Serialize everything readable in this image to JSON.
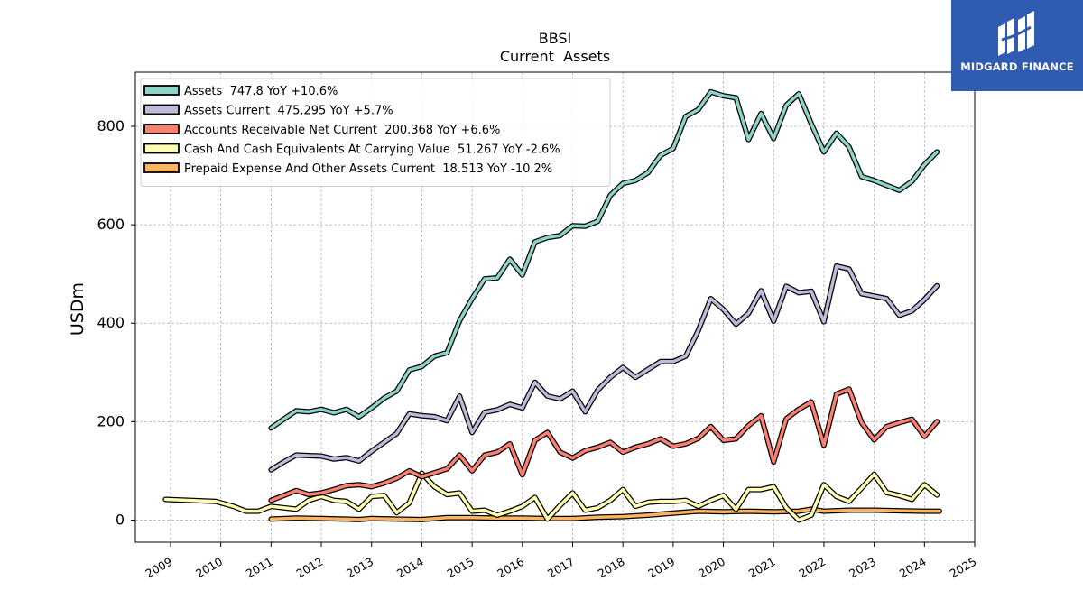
{
  "colors": {
    "assets": "#8dd3c7",
    "assets_current": "#bebada",
    "receivable": "#fb8072",
    "cash": "#ffffb3",
    "prepaid": "#fdb462",
    "outline": "#000000",
    "grid": "#b0b0b0",
    "logo_bg": "#2f5bb0"
  },
  "brand": {
    "name": "MIDGARD FINANCE",
    "icon": "midgard-logo-icon"
  },
  "chart_data": {
    "type": "line",
    "title": "BBSI",
    "subtitle": "Current  Assets",
    "ylabel": "USDm",
    "xlabel": "",
    "xlim": [
      2008.3,
      2025.0
    ],
    "ylim": [
      -45,
      910
    ],
    "yticks": [
      0,
      200,
      400,
      600,
      800
    ],
    "xticks": [
      2009,
      2010,
      2011,
      2012,
      2013,
      2014,
      2015,
      2016,
      2017,
      2018,
      2019,
      2020,
      2021,
      2022,
      2023,
      2024,
      2025
    ],
    "grid": true,
    "legend_position": "top-left",
    "series": [
      {
        "name": "Assets  747.8 YoY +10.6%",
        "color_key": "assets",
        "points": [
          [
            2011.0,
            187
          ],
          [
            2011.25,
            205
          ],
          [
            2011.5,
            222
          ],
          [
            2011.75,
            220
          ],
          [
            2012.0,
            225
          ],
          [
            2012.25,
            218
          ],
          [
            2012.5,
            225
          ],
          [
            2012.75,
            210
          ],
          [
            2013.0,
            228
          ],
          [
            2013.25,
            248
          ],
          [
            2013.5,
            262
          ],
          [
            2013.75,
            305
          ],
          [
            2014.0,
            312
          ],
          [
            2014.25,
            333
          ],
          [
            2014.5,
            340
          ],
          [
            2014.75,
            405
          ],
          [
            2015.0,
            450
          ],
          [
            2015.25,
            490
          ],
          [
            2015.5,
            492
          ],
          [
            2015.75,
            530
          ],
          [
            2016.0,
            498
          ],
          [
            2016.25,
            565
          ],
          [
            2016.5,
            574
          ],
          [
            2016.75,
            578
          ],
          [
            2017.0,
            598
          ],
          [
            2017.25,
            597
          ],
          [
            2017.5,
            607
          ],
          [
            2017.75,
            660
          ],
          [
            2018.0,
            684
          ],
          [
            2018.25,
            690
          ],
          [
            2018.5,
            706
          ],
          [
            2018.75,
            741
          ],
          [
            2019.0,
            755
          ],
          [
            2019.25,
            820
          ],
          [
            2019.5,
            834
          ],
          [
            2019.75,
            870
          ],
          [
            2020.0,
            862
          ],
          [
            2020.25,
            858
          ],
          [
            2020.5,
            773
          ],
          [
            2020.75,
            826
          ],
          [
            2021.0,
            775
          ],
          [
            2021.25,
            843
          ],
          [
            2021.5,
            866
          ],
          [
            2021.75,
            805
          ],
          [
            2022.0,
            748
          ],
          [
            2022.25,
            786
          ],
          [
            2022.5,
            758
          ],
          [
            2022.75,
            698
          ],
          [
            2023.0,
            690
          ],
          [
            2023.25,
            680
          ],
          [
            2023.5,
            670
          ],
          [
            2023.75,
            688
          ],
          [
            2024.0,
            722
          ],
          [
            2024.25,
            748
          ]
        ]
      },
      {
        "name": "Assets Current  475.295 YoY +5.7%",
        "color_key": "assets_current",
        "points": [
          [
            2011.0,
            102
          ],
          [
            2011.25,
            118
          ],
          [
            2011.5,
            132
          ],
          [
            2011.75,
            131
          ],
          [
            2012.0,
            130
          ],
          [
            2012.25,
            124
          ],
          [
            2012.5,
            127
          ],
          [
            2012.75,
            120
          ],
          [
            2013.0,
            140
          ],
          [
            2013.25,
            158
          ],
          [
            2013.5,
            176
          ],
          [
            2013.75,
            216
          ],
          [
            2014.0,
            212
          ],
          [
            2014.25,
            210
          ],
          [
            2014.5,
            202
          ],
          [
            2014.75,
            252
          ],
          [
            2015.0,
            178
          ],
          [
            2015.25,
            219
          ],
          [
            2015.5,
            224
          ],
          [
            2015.75,
            235
          ],
          [
            2016.0,
            228
          ],
          [
            2016.25,
            280
          ],
          [
            2016.5,
            252
          ],
          [
            2016.75,
            246
          ],
          [
            2017.0,
            262
          ],
          [
            2017.25,
            220
          ],
          [
            2017.5,
            264
          ],
          [
            2017.75,
            290
          ],
          [
            2018.0,
            310
          ],
          [
            2018.25,
            290
          ],
          [
            2018.5,
            306
          ],
          [
            2018.75,
            322
          ],
          [
            2019.0,
            322
          ],
          [
            2019.25,
            333
          ],
          [
            2019.5,
            385
          ],
          [
            2019.75,
            450
          ],
          [
            2020.0,
            428
          ],
          [
            2020.25,
            398
          ],
          [
            2020.5,
            420
          ],
          [
            2020.75,
            466
          ],
          [
            2021.0,
            404
          ],
          [
            2021.25,
            475
          ],
          [
            2021.5,
            462
          ],
          [
            2021.75,
            465
          ],
          [
            2022.0,
            403
          ],
          [
            2022.25,
            516
          ],
          [
            2022.5,
            510
          ],
          [
            2022.75,
            460
          ],
          [
            2023.0,
            455
          ],
          [
            2023.25,
            450
          ],
          [
            2023.5,
            416
          ],
          [
            2023.75,
            425
          ],
          [
            2024.0,
            448
          ],
          [
            2024.25,
            476
          ]
        ]
      },
      {
        "name": "Accounts Receivable Net Current  200.368 YoY +6.6%",
        "color_key": "receivable",
        "points": [
          [
            2011.0,
            40
          ],
          [
            2011.25,
            50
          ],
          [
            2011.5,
            60
          ],
          [
            2011.75,
            52
          ],
          [
            2012.0,
            55
          ],
          [
            2012.25,
            62
          ],
          [
            2012.5,
            70
          ],
          [
            2012.75,
            72
          ],
          [
            2013.0,
            68
          ],
          [
            2013.25,
            75
          ],
          [
            2013.5,
            85
          ],
          [
            2013.75,
            100
          ],
          [
            2014.0,
            88
          ],
          [
            2014.25,
            96
          ],
          [
            2014.5,
            104
          ],
          [
            2014.75,
            132
          ],
          [
            2015.0,
            100
          ],
          [
            2015.25,
            132
          ],
          [
            2015.5,
            138
          ],
          [
            2015.75,
            155
          ],
          [
            2016.0,
            92
          ],
          [
            2016.25,
            162
          ],
          [
            2016.5,
            178
          ],
          [
            2016.75,
            138
          ],
          [
            2017.0,
            126
          ],
          [
            2017.25,
            141
          ],
          [
            2017.5,
            148
          ],
          [
            2017.75,
            158
          ],
          [
            2018.0,
            138
          ],
          [
            2018.25,
            148
          ],
          [
            2018.5,
            155
          ],
          [
            2018.75,
            165
          ],
          [
            2019.0,
            150
          ],
          [
            2019.25,
            155
          ],
          [
            2019.5,
            166
          ],
          [
            2019.75,
            190
          ],
          [
            2020.0,
            162
          ],
          [
            2020.25,
            165
          ],
          [
            2020.5,
            192
          ],
          [
            2020.75,
            212
          ],
          [
            2021.0,
            118
          ],
          [
            2021.25,
            206
          ],
          [
            2021.5,
            225
          ],
          [
            2021.75,
            240
          ],
          [
            2022.0,
            152
          ],
          [
            2022.25,
            256
          ],
          [
            2022.5,
            266
          ],
          [
            2022.75,
            198
          ],
          [
            2023.0,
            163
          ],
          [
            2023.25,
            190
          ],
          [
            2023.5,
            198
          ],
          [
            2023.75,
            205
          ],
          [
            2024.0,
            170
          ],
          [
            2024.25,
            200
          ]
        ]
      },
      {
        "name": "Cash And Cash Equivalents At Carrying Value  51.267 YoY -2.6%",
        "color_key": "cash",
        "points": [
          [
            2008.9,
            42
          ],
          [
            2009.9,
            38
          ],
          [
            2010.25,
            28
          ],
          [
            2010.5,
            18
          ],
          [
            2010.75,
            18
          ],
          [
            2011.0,
            28
          ],
          [
            2011.25,
            25
          ],
          [
            2011.5,
            22
          ],
          [
            2011.75,
            40
          ],
          [
            2012.0,
            48
          ],
          [
            2012.25,
            40
          ],
          [
            2012.5,
            38
          ],
          [
            2012.75,
            22
          ],
          [
            2013.0,
            48
          ],
          [
            2013.25,
            50
          ],
          [
            2013.5,
            15
          ],
          [
            2013.75,
            35
          ],
          [
            2014.0,
            95
          ],
          [
            2014.25,
            68
          ],
          [
            2014.5,
            52
          ],
          [
            2014.75,
            55
          ],
          [
            2015.0,
            18
          ],
          [
            2015.25,
            20
          ],
          [
            2015.5,
            10
          ],
          [
            2015.75,
            18
          ],
          [
            2016.0,
            28
          ],
          [
            2016.25,
            46
          ],
          [
            2016.5,
            2
          ],
          [
            2016.75,
            30
          ],
          [
            2017.0,
            55
          ],
          [
            2017.25,
            20
          ],
          [
            2017.5,
            25
          ],
          [
            2017.75,
            40
          ],
          [
            2018.0,
            62
          ],
          [
            2018.25,
            28
          ],
          [
            2018.5,
            36
          ],
          [
            2018.75,
            38
          ],
          [
            2019.0,
            38
          ],
          [
            2019.25,
            40
          ],
          [
            2019.5,
            28
          ],
          [
            2019.75,
            40
          ],
          [
            2020.0,
            50
          ],
          [
            2020.25,
            22
          ],
          [
            2020.5,
            62
          ],
          [
            2020.75,
            62
          ],
          [
            2021.0,
            68
          ],
          [
            2021.25,
            25
          ],
          [
            2021.5,
            0
          ],
          [
            2021.75,
            10
          ],
          [
            2022.0,
            72
          ],
          [
            2022.25,
            48
          ],
          [
            2022.5,
            38
          ],
          [
            2022.75,
            65
          ],
          [
            2023.0,
            93
          ],
          [
            2023.25,
            56
          ],
          [
            2023.5,
            50
          ],
          [
            2023.75,
            42
          ],
          [
            2024.0,
            72
          ],
          [
            2024.25,
            51
          ]
        ]
      },
      {
        "name": "Prepaid Expense And Other Assets Current  18.513 YoY -10.2%",
        "color_key": "prepaid",
        "points": [
          [
            2011.0,
            2
          ],
          [
            2011.5,
            4
          ],
          [
            2012.0,
            3
          ],
          [
            2012.5,
            2
          ],
          [
            2012.75,
            1
          ],
          [
            2013.0,
            3
          ],
          [
            2013.5,
            2
          ],
          [
            2014.0,
            1
          ],
          [
            2014.5,
            5
          ],
          [
            2015.0,
            5
          ],
          [
            2015.5,
            4
          ],
          [
            2016.0,
            4
          ],
          [
            2016.5,
            3
          ],
          [
            2017.0,
            3
          ],
          [
            2017.5,
            6
          ],
          [
            2018.0,
            7
          ],
          [
            2018.5,
            10
          ],
          [
            2019.0,
            14
          ],
          [
            2019.5,
            18
          ],
          [
            2020.0,
            17
          ],
          [
            2020.5,
            18
          ],
          [
            2021.0,
            17
          ],
          [
            2021.5,
            18
          ],
          [
            2021.75,
            22
          ],
          [
            2022.0,
            18
          ],
          [
            2022.5,
            20
          ],
          [
            2023.0,
            20
          ],
          [
            2023.5,
            19
          ],
          [
            2024.0,
            18
          ],
          [
            2024.3,
            18
          ]
        ]
      }
    ]
  }
}
